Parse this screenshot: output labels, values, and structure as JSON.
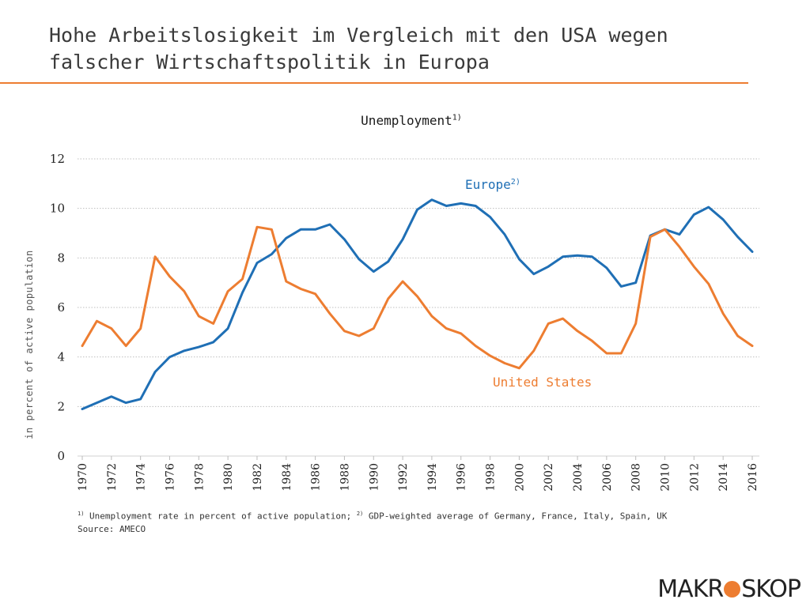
{
  "slide": {
    "title_line1": "Hohe Arbeitslosigkeit im Vergleich mit den USA wegen",
    "title_line2": "falscher Wirtschaftspolitik in Europa"
  },
  "footnote": {
    "marker1": "1)",
    "text1": " Unemployment rate in percent of active population; ",
    "marker2": "2)",
    "text2": " GDP-weighted average of Germany, France, Italy, Spain, UK",
    "source": "Source: AMECO"
  },
  "logo": {
    "part1": "MAKR",
    "part2": "SKOP"
  },
  "colors": {
    "europe": "#1F6FB5",
    "us": "#ED7D31",
    "grid": "#BFBFBF",
    "rule": "#ED7D31"
  },
  "chart_data": {
    "type": "line",
    "title": "Unemployment",
    "title_sup": "1)",
    "xlabel": "",
    "ylabel": "in percent of active population",
    "ylim": [
      0,
      12
    ],
    "yticks": [
      0,
      2,
      4,
      6,
      8,
      10,
      12
    ],
    "x": [
      1970,
      1971,
      1972,
      1973,
      1974,
      1975,
      1976,
      1977,
      1978,
      1979,
      1980,
      1981,
      1982,
      1983,
      1984,
      1985,
      1986,
      1987,
      1988,
      1989,
      1990,
      1991,
      1992,
      1993,
      1994,
      1995,
      1996,
      1997,
      1998,
      1999,
      2000,
      2001,
      2002,
      2003,
      2004,
      2005,
      2006,
      2007,
      2008,
      2009,
      2010,
      2011,
      2012,
      2013,
      2014,
      2015,
      2016
    ],
    "xticks": [
      "1970",
      "1972",
      "1974",
      "1976",
      "1978",
      "1980",
      "1982",
      "1984",
      "1986",
      "1988",
      "1990",
      "1992",
      "1994",
      "1996",
      "1998",
      "2000",
      "2002",
      "2004",
      "2006",
      "2008",
      "2010",
      "2012",
      "2014",
      "2016"
    ],
    "series": [
      {
        "name": "Europe",
        "label_sup": "2)",
        "values": [
          1.9,
          2.15,
          2.4,
          2.15,
          2.3,
          3.4,
          4.0,
          4.25,
          4.4,
          4.6,
          5.15,
          6.6,
          7.8,
          8.15,
          8.8,
          9.15,
          9.15,
          9.35,
          8.75,
          7.95,
          7.45,
          7.85,
          8.75,
          9.95,
          10.35,
          10.1,
          10.2,
          10.1,
          9.65,
          8.95,
          7.95,
          7.35,
          7.65,
          8.05,
          8.1,
          8.05,
          7.6,
          6.85,
          7.0,
          8.9,
          9.15,
          8.95,
          9.75,
          10.05,
          9.55,
          8.85,
          8.25
        ]
      },
      {
        "name": "United States",
        "label_sup": "",
        "values": [
          4.45,
          5.45,
          5.15,
          4.45,
          5.15,
          8.05,
          7.25,
          6.65,
          5.65,
          5.35,
          6.65,
          7.15,
          9.25,
          9.15,
          7.05,
          6.75,
          6.55,
          5.75,
          5.05,
          4.85,
          5.15,
          6.35,
          7.05,
          6.45,
          5.65,
          5.15,
          4.95,
          4.45,
          4.05,
          3.75,
          3.55,
          4.25,
          5.35,
          5.55,
          5.05,
          4.65,
          4.15,
          4.15,
          5.35,
          8.85,
          9.15,
          8.45,
          7.65,
          6.95,
          5.75,
          4.85,
          4.45
        ]
      }
    ]
  }
}
